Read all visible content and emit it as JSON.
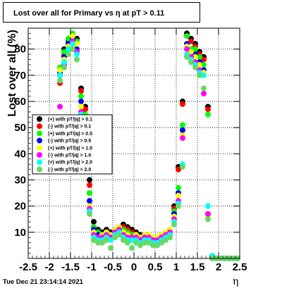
{
  "title": "Lost over all for Primary vs  η at pT > 0.11",
  "timestamp": "Tue Dec 21 23:14:14 2021",
  "chart_data": {
    "type": "scatter",
    "xlabel": "η",
    "ylabel": "Lost over all (%)",
    "xlim": [
      -2.5,
      2.5
    ],
    "ylim": [
      0,
      88
    ],
    "x_ticks": [
      "-2.5",
      "-2",
      "-1.5",
      "-1",
      "-0.5",
      "0",
      "0.5",
      "1",
      "1.5",
      "2",
      "2.5"
    ],
    "y_ticks": [
      "10",
      "20",
      "30",
      "40",
      "50",
      "60",
      "70",
      "80"
    ],
    "grid": true,
    "legend_position": "center-left",
    "x": [
      -1.75,
      -1.65,
      -1.55,
      -1.45,
      -1.35,
      -1.25,
      -1.15,
      -1.05,
      -0.95,
      -0.85,
      -0.75,
      -0.65,
      -0.55,
      -0.45,
      -0.35,
      -0.25,
      -0.15,
      -0.05,
      0.05,
      0.15,
      0.25,
      0.35,
      0.45,
      0.55,
      0.65,
      0.75,
      0.85,
      0.95,
      1.05,
      1.15,
      1.25,
      1.35,
      1.45,
      1.55,
      1.65,
      1.75,
      1.85,
      1.95,
      2.05,
      2.15,
      2.25,
      2.35,
      2.45
    ],
    "series": [
      {
        "name": "(+) with pT/|q| > 0.1",
        "color": "#000000",
        "values": [
          70,
          80,
          83,
          85,
          84,
          65,
          58,
          30,
          14,
          11,
          10,
          11,
          10,
          11,
          12,
          13,
          12,
          11,
          10,
          9,
          9,
          8,
          8,
          8,
          9,
          10,
          11,
          20,
          35,
          60,
          86,
          84,
          82,
          79,
          77,
          58,
          1,
          0,
          0,
          0,
          0,
          0,
          0
        ]
      },
      {
        "name": "(-) with pT/|q| > 0.1",
        "color": "#ff0000",
        "values": [
          67,
          78,
          82,
          84,
          82,
          64,
          57,
          28,
          12,
          10,
          9,
          10,
          9,
          10,
          11,
          12,
          11,
          10,
          9,
          8,
          8,
          7,
          7,
          7,
          8,
          9,
          10,
          19,
          34,
          59,
          85,
          83,
          81,
          78,
          76,
          57,
          1,
          0,
          0,
          0,
          0,
          0,
          0
        ]
      },
      {
        "name": "(+) with pT/|q| > 0.5",
        "color": "#00ff00",
        "values": [
          73,
          79,
          84,
          86,
          83,
          62,
          55,
          25,
          12,
          10,
          9,
          10,
          9,
          10,
          11,
          11,
          10,
          9,
          9,
          8,
          8,
          8,
          8,
          8,
          9,
          10,
          11,
          18,
          27,
          51,
          85,
          80,
          80,
          77,
          74,
          55,
          1,
          0,
          0,
          0,
          0,
          0,
          0
        ]
      },
      {
        "name": "(-) with pT/|q| > 0.5",
        "color": "#0000ff",
        "values": [
          71,
          77,
          82,
          84,
          80,
          60,
          52,
          22,
          11,
          9,
          8,
          9,
          8,
          9,
          10,
          10,
          9,
          8,
          8,
          7,
          7,
          7,
          7,
          7,
          8,
          9,
          10,
          17,
          25,
          49,
          82,
          78,
          78,
          75,
          72,
          17,
          0,
          0,
          0,
          0,
          0,
          0,
          0
        ]
      },
      {
        "name": "(+) with pT/|q| > 1.0",
        "color": "#ffff00",
        "values": [
          72,
          76,
          81,
          85,
          82,
          58,
          50,
          20,
          10,
          8,
          9,
          10,
          9,
          11,
          12,
          10,
          9,
          8,
          9,
          8,
          9,
          9,
          8,
          8,
          9,
          10,
          11,
          16,
          24,
          47,
          81,
          79,
          77,
          74,
          71,
          16,
          0,
          0,
          0,
          0,
          0,
          0,
          0
        ]
      },
      {
        "name": "(-) with pT/|q| > 1.0",
        "color": "#ff00ff",
        "values": [
          58,
          74,
          80,
          83,
          79,
          56,
          48,
          19,
          9,
          8,
          8,
          9,
          8,
          10,
          11,
          9,
          8,
          8,
          8,
          7,
          8,
          8,
          7,
          7,
          8,
          9,
          10,
          15,
          22,
          46,
          80,
          77,
          75,
          72,
          63,
          17,
          0,
          0,
          0,
          0,
          0,
          0,
          0
        ]
      },
      {
        "name": "(+) with pT/|q| > 2.0",
        "color": "#00ffff",
        "values": [
          70,
          75,
          80,
          82,
          78,
          55,
          45,
          18,
          8,
          7,
          7,
          8,
          7,
          9,
          10,
          8,
          7,
          7,
          7,
          6,
          7,
          7,
          6,
          6,
          7,
          8,
          9,
          14,
          21,
          36,
          78,
          76,
          74,
          71,
          70,
          20,
          1,
          0,
          0,
          0,
          0,
          0,
          0
        ]
      },
      {
        "name": "(-) with pT/|q| > 2.0",
        "color": "#66d966",
        "values": [
          68,
          73,
          78,
          80,
          76,
          54,
          43,
          17,
          7,
          6,
          6,
          7,
          4,
          8,
          9,
          7,
          6,
          4,
          6,
          5,
          6,
          6,
          5,
          5,
          6,
          7,
          8,
          13,
          20,
          35,
          77,
          75,
          73,
          70,
          65,
          15,
          0,
          0,
          0,
          0,
          0,
          0,
          0
        ]
      }
    ]
  }
}
